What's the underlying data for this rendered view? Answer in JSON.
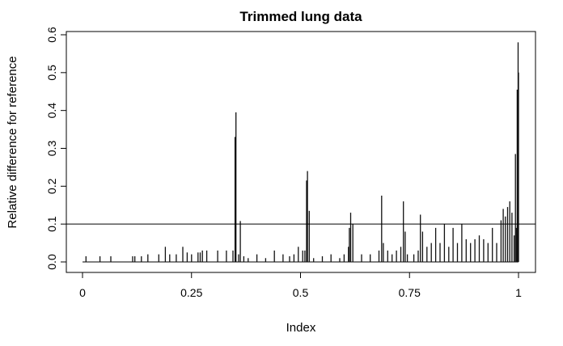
{
  "chart_data": {
    "type": "bar",
    "title": "Trimmed lung data",
    "xlabel": "Index",
    "ylabel": "Relative difference for reference",
    "xlim": [
      0,
      1
    ],
    "ylim": [
      0,
      0.6
    ],
    "x_ticks": [
      0,
      0.25,
      0.5,
      0.75,
      1
    ],
    "x_tick_labels": [
      "0",
      "0.25",
      "0.5",
      "0.75",
      "1"
    ],
    "y_ticks": [
      0,
      0.1,
      0.2,
      0.3,
      0.4,
      0.5,
      0.6
    ],
    "y_tick_labels": [
      "0.0",
      "0.1",
      "0.2",
      "0.3",
      "0.4",
      "0.5",
      "0.6"
    ],
    "reference_line": 0.1,
    "grid": false,
    "series": [
      {
        "x": [
          0.008,
          0.04,
          0.065,
          0.115,
          0.12,
          0.135,
          0.15,
          0.175,
          0.19,
          0.2,
          0.215,
          0.23,
          0.24,
          0.25,
          0.265,
          0.27,
          0.275,
          0.285,
          0.31,
          0.33,
          0.345,
          0.35,
          0.352,
          0.358,
          0.362,
          0.37,
          0.38,
          0.4,
          0.42,
          0.44,
          0.46,
          0.475,
          0.485,
          0.495,
          0.505,
          0.51,
          0.514,
          0.516,
          0.52,
          0.53,
          0.55,
          0.57,
          0.59,
          0.6,
          0.61,
          0.612,
          0.615,
          0.62,
          0.64,
          0.66,
          0.68,
          0.686,
          0.69,
          0.7,
          0.71,
          0.72,
          0.73,
          0.736,
          0.74,
          0.745,
          0.76,
          0.77,
          0.775,
          0.78,
          0.79,
          0.8,
          0.81,
          0.82,
          0.83,
          0.84,
          0.85,
          0.86,
          0.87,
          0.88,
          0.89,
          0.9,
          0.91,
          0.92,
          0.93,
          0.94,
          0.95,
          0.96,
          0.965,
          0.97,
          0.975,
          0.98,
          0.985,
          0.99,
          0.993,
          0.995,
          0.997,
          0.999,
          1.0
        ],
        "values": [
          0.015,
          0.015,
          0.015,
          0.015,
          0.015,
          0.015,
          0.02,
          0.02,
          0.04,
          0.02,
          0.02,
          0.04,
          0.025,
          0.02,
          0.025,
          0.025,
          0.03,
          0.03,
          0.03,
          0.03,
          0.03,
          0.33,
          0.395,
          0.02,
          0.108,
          0.015,
          0.01,
          0.02,
          0.01,
          0.03,
          0.02,
          0.015,
          0.02,
          0.04,
          0.03,
          0.03,
          0.215,
          0.24,
          0.135,
          0.01,
          0.015,
          0.02,
          0.01,
          0.02,
          0.04,
          0.09,
          0.13,
          0.1,
          0.02,
          0.02,
          0.03,
          0.175,
          0.05,
          0.03,
          0.02,
          0.03,
          0.04,
          0.16,
          0.08,
          0.02,
          0.02,
          0.03,
          0.125,
          0.08,
          0.04,
          0.05,
          0.09,
          0.05,
          0.1,
          0.04,
          0.09,
          0.05,
          0.1,
          0.06,
          0.05,
          0.06,
          0.07,
          0.06,
          0.05,
          0.09,
          0.05,
          0.11,
          0.14,
          0.12,
          0.145,
          0.16,
          0.13,
          0.07,
          0.285,
          0.09,
          0.455,
          0.58,
          0.5
        ]
      }
    ]
  }
}
